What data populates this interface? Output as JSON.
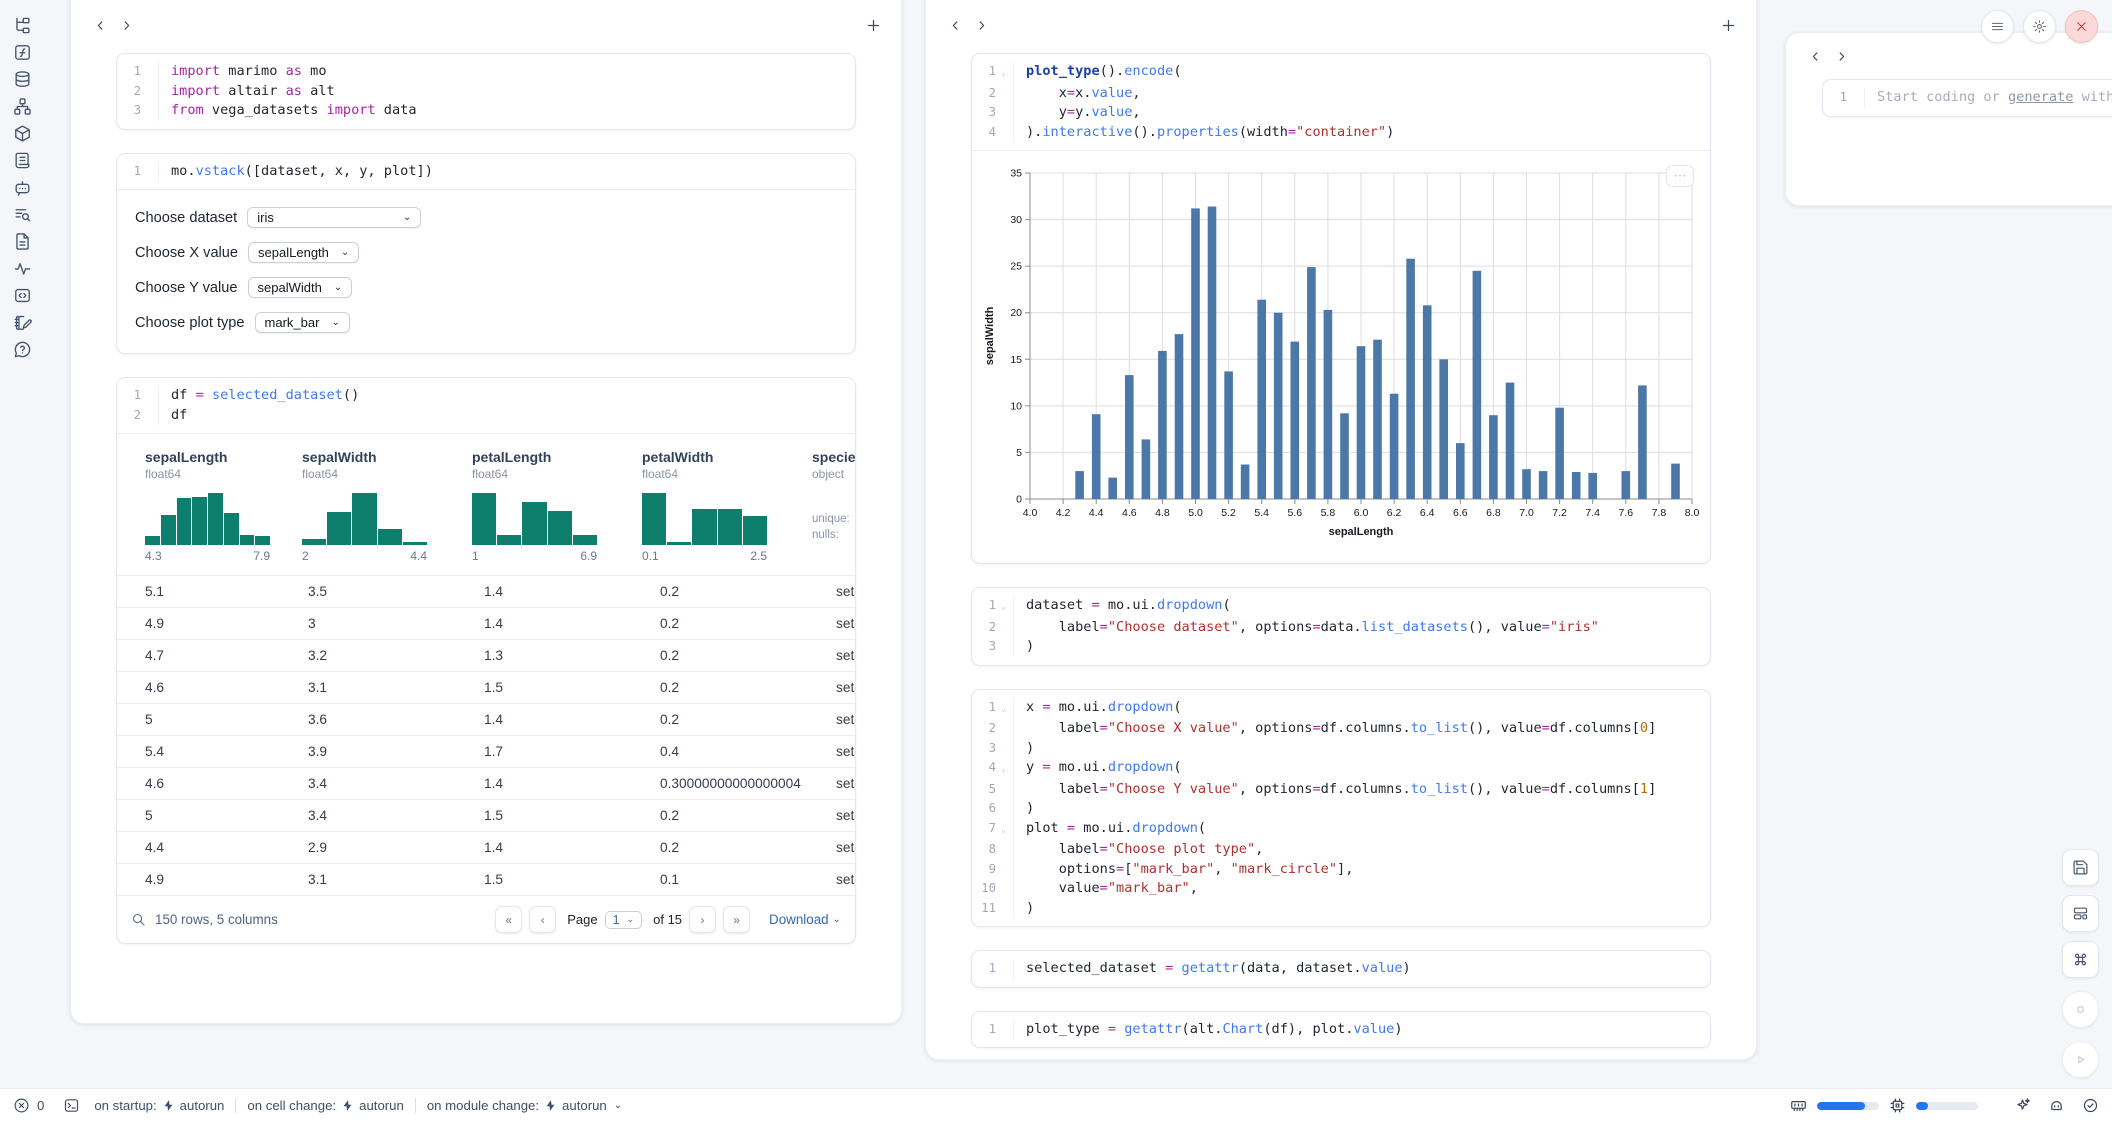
{
  "sidebar": {
    "icons": [
      "file-tree",
      "function-square",
      "database",
      "network",
      "package",
      "scroll-text",
      "chat-bot",
      "list-search",
      "document",
      "activity",
      "code-box",
      "notebook-pen",
      "help-circle"
    ]
  },
  "left_panel": {
    "cells": [
      {
        "lines": [
          {
            "n": 1,
            "t": [
              [
                "kw",
                "import"
              ],
              [
                "t",
                " marimo "
              ],
              [
                "kw",
                "as"
              ],
              [
                "t",
                " mo"
              ]
            ]
          },
          {
            "n": 2,
            "t": [
              [
                "kw",
                "import"
              ],
              [
                "t",
                " altair "
              ],
              [
                "kw",
                "as"
              ],
              [
                "t",
                " alt"
              ]
            ]
          },
          {
            "n": 3,
            "t": [
              [
                "kw",
                "from"
              ],
              [
                "t",
                " vega_datasets "
              ],
              [
                "kw",
                "import"
              ],
              [
                "t",
                " data"
              ]
            ]
          }
        ]
      },
      {
        "lines": [
          {
            "n": 1,
            "t": [
              [
                "t",
                "mo."
              ],
              [
                "fn",
                "vstack"
              ],
              [
                "t",
                "([dataset, x, y, plot])"
              ]
            ]
          }
        ]
      },
      {
        "lines": [
          {
            "n": 1,
            "t": [
              [
                "t",
                "df "
              ],
              [
                "op",
                "="
              ],
              [
                "t",
                " "
              ],
              [
                "fn",
                "selected_dataset"
              ],
              [
                "t",
                "()"
              ]
            ]
          },
          {
            "n": 2,
            "t": [
              [
                "t",
                "df"
              ]
            ]
          }
        ]
      }
    ],
    "controls": [
      {
        "label": "Choose dataset",
        "value": "iris"
      },
      {
        "label": "Choose X value",
        "value": "sepalLength"
      },
      {
        "label": "Choose Y value",
        "value": "sepalWidth"
      },
      {
        "label": "Choose plot type",
        "value": "mark_bar"
      }
    ],
    "table": {
      "columns": [
        {
          "name": "sepalLength",
          "dtype": "float64",
          "min": "4.3",
          "max": "7.9",
          "hist": [
            0.18,
            0.58,
            0.9,
            0.93,
            1.0,
            0.62,
            0.2,
            0.18
          ]
        },
        {
          "name": "sepalWidth",
          "dtype": "float64",
          "min": "2",
          "max": "4.4",
          "hist": [
            0.12,
            0.63,
            1.0,
            0.3,
            0.06
          ]
        },
        {
          "name": "petalLength",
          "dtype": "float64",
          "min": "1",
          "max": "6.9",
          "hist": [
            1.0,
            0.2,
            0.82,
            0.66,
            0.2
          ]
        },
        {
          "name": "petalWidth",
          "dtype": "float64",
          "min": "0.1",
          "max": "2.5",
          "hist": [
            1.0,
            0.05,
            0.7,
            0.7,
            0.56
          ]
        },
        {
          "name": "species",
          "dtype": "object",
          "stats": [
            "unique:",
            "nulls:"
          ]
        }
      ],
      "rows": [
        [
          "5.1",
          "3.5",
          "1.4",
          "0.2",
          "setosa"
        ],
        [
          "4.9",
          "3",
          "1.4",
          "0.2",
          "setosa"
        ],
        [
          "4.7",
          "3.2",
          "1.3",
          "0.2",
          "setosa"
        ],
        [
          "4.6",
          "3.1",
          "1.5",
          "0.2",
          "setosa"
        ],
        [
          "5",
          "3.6",
          "1.4",
          "0.2",
          "setosa"
        ],
        [
          "5.4",
          "3.9",
          "1.7",
          "0.4",
          "setosa"
        ],
        [
          "4.6",
          "3.4",
          "1.4",
          "0.30000000000000004",
          "setosa"
        ],
        [
          "5",
          "3.4",
          "1.5",
          "0.2",
          "setosa"
        ],
        [
          "4.4",
          "2.9",
          "1.4",
          "0.2",
          "setosa"
        ],
        [
          "4.9",
          "3.1",
          "1.5",
          "0.1",
          "setosa"
        ]
      ],
      "footer": {
        "summary": "150 rows, 5 columns",
        "page_label": "Page",
        "page_value": "1",
        "of_text": "of 15",
        "download": "Download"
      }
    }
  },
  "middle_panel": {
    "cells": [
      {
        "lines": [
          {
            "n": 1,
            "f": true,
            "t": [
              [
                "def",
                "plot_type"
              ],
              [
                "t",
                "()."
              ],
              [
                "fn",
                "encode"
              ],
              [
                "t",
                "("
              ]
            ]
          },
          {
            "n": 2,
            "t": [
              [
                "t",
                "    x"
              ],
              [
                "op",
                "="
              ],
              [
                "t",
                "x."
              ],
              [
                "fn",
                "value"
              ],
              [
                "t",
                ","
              ]
            ]
          },
          {
            "n": 3,
            "t": [
              [
                "t",
                "    y"
              ],
              [
                "op",
                "="
              ],
              [
                "t",
                "y."
              ],
              [
                "fn",
                "value"
              ],
              [
                "t",
                ","
              ]
            ]
          },
          {
            "n": 4,
            "t": [
              [
                "t",
                ")."
              ],
              [
                "fn",
                "interactive"
              ],
              [
                "t",
                "()."
              ],
              [
                "fn",
                "properties"
              ],
              [
                "t",
                "(width"
              ],
              [
                "op",
                "="
              ],
              [
                "str",
                "\"container\""
              ],
              [
                "t",
                ")"
              ]
            ]
          }
        ]
      },
      {
        "lines": [
          {
            "n": 1,
            "f": true,
            "t": [
              [
                "t",
                "dataset "
              ],
              [
                "op",
                "="
              ],
              [
                "t",
                " mo.ui."
              ],
              [
                "fn",
                "dropdown"
              ],
              [
                "t",
                "("
              ]
            ]
          },
          {
            "n": 2,
            "t": [
              [
                "t",
                "    label"
              ],
              [
                "op",
                "="
              ],
              [
                "str",
                "\"Choose dataset\""
              ],
              [
                "t",
                ", options"
              ],
              [
                "op",
                "="
              ],
              [
                "t",
                "data."
              ],
              [
                "fn",
                "list_datasets"
              ],
              [
                "t",
                "(), value"
              ],
              [
                "op",
                "="
              ],
              [
                "str",
                "\"iris\""
              ]
            ]
          },
          {
            "n": 3,
            "t": [
              [
                "t",
                ")"
              ]
            ]
          }
        ]
      },
      {
        "lines": [
          {
            "n": 1,
            "f": true,
            "t": [
              [
                "t",
                "x "
              ],
              [
                "op",
                "="
              ],
              [
                "t",
                " mo.ui."
              ],
              [
                "fn",
                "dropdown"
              ],
              [
                "t",
                "("
              ]
            ]
          },
          {
            "n": 2,
            "t": [
              [
                "t",
                "    label"
              ],
              [
                "op",
                "="
              ],
              [
                "str",
                "\"Choose X value\""
              ],
              [
                "t",
                ", options"
              ],
              [
                "op",
                "="
              ],
              [
                "t",
                "df.columns."
              ],
              [
                "fn",
                "to_list"
              ],
              [
                "t",
                "(), value"
              ],
              [
                "op",
                "="
              ],
              [
                "t",
                "df.columns["
              ],
              [
                "num",
                "0"
              ],
              [
                "t",
                "]"
              ]
            ]
          },
          {
            "n": 3,
            "t": [
              [
                "t",
                ")"
              ]
            ]
          },
          {
            "n": 4,
            "f": true,
            "t": [
              [
                "t",
                "y "
              ],
              [
                "op",
                "="
              ],
              [
                "t",
                " mo.ui."
              ],
              [
                "fn",
                "dropdown"
              ],
              [
                "t",
                "("
              ]
            ]
          },
          {
            "n": 5,
            "t": [
              [
                "t",
                "    label"
              ],
              [
                "op",
                "="
              ],
              [
                "str",
                "\"Choose Y value\""
              ],
              [
                "t",
                ", options"
              ],
              [
                "op",
                "="
              ],
              [
                "t",
                "df.columns."
              ],
              [
                "fn",
                "to_list"
              ],
              [
                "t",
                "(), value"
              ],
              [
                "op",
                "="
              ],
              [
                "t",
                "df.columns["
              ],
              [
                "num",
                "1"
              ],
              [
                "t",
                "]"
              ]
            ]
          },
          {
            "n": 6,
            "t": [
              [
                "t",
                ")"
              ]
            ]
          },
          {
            "n": 7,
            "f": true,
            "t": [
              [
                "t",
                "plot "
              ],
              [
                "op",
                "="
              ],
              [
                "t",
                " mo.ui."
              ],
              [
                "fn",
                "dropdown"
              ],
              [
                "t",
                "("
              ]
            ]
          },
          {
            "n": 8,
            "t": [
              [
                "t",
                "    label"
              ],
              [
                "op",
                "="
              ],
              [
                "str",
                "\"Choose plot type\""
              ],
              [
                "t",
                ","
              ]
            ]
          },
          {
            "n": 9,
            "t": [
              [
                "t",
                "    options"
              ],
              [
                "op",
                "="
              ],
              [
                "t",
                "["
              ],
              [
                "str",
                "\"mark_bar\""
              ],
              [
                "t",
                ", "
              ],
              [
                "str",
                "\"mark_circle\""
              ],
              [
                "t",
                "],"
              ]
            ]
          },
          {
            "n": 10,
            "t": [
              [
                "t",
                "    value"
              ],
              [
                "op",
                "="
              ],
              [
                "str",
                "\"mark_bar\""
              ],
              [
                "t",
                ","
              ]
            ]
          },
          {
            "n": 11,
            "t": [
              [
                "t",
                ")"
              ]
            ]
          }
        ]
      },
      {
        "lines": [
          {
            "n": 1,
            "t": [
              [
                "t",
                "selected_dataset "
              ],
              [
                "op",
                "="
              ],
              [
                "t",
                " "
              ],
              [
                "fn",
                "getattr"
              ],
              [
                "t",
                "(data, dataset."
              ],
              [
                "fn",
                "value"
              ],
              [
                "t",
                ")"
              ]
            ]
          }
        ]
      },
      {
        "lines": [
          {
            "n": 1,
            "t": [
              [
                "t",
                "plot_type "
              ],
              [
                "op",
                "="
              ],
              [
                "t",
                " "
              ],
              [
                "fn",
                "getattr"
              ],
              [
                "t",
                "(alt."
              ],
              [
                "fn",
                "Chart"
              ],
              [
                "t",
                "(df), plot."
              ],
              [
                "fn",
                "value"
              ],
              [
                "t",
                ")"
              ]
            ]
          }
        ]
      }
    ]
  },
  "right_panel": {
    "line_no": "1",
    "placeholder": {
      "pre": "Start coding or ",
      "link": "generate",
      "post": " with"
    }
  },
  "chart_data": {
    "type": "bar",
    "title": "",
    "xlabel": "sepalLength",
    "ylabel": "sepalWidth",
    "xlim": [
      4.0,
      8.0
    ],
    "ylim": [
      0,
      35
    ],
    "xticks": [
      4.0,
      4.2,
      4.4,
      4.6,
      4.8,
      5.0,
      5.2,
      5.4,
      5.6,
      5.8,
      6.0,
      6.2,
      6.4,
      6.6,
      6.8,
      7.0,
      7.2,
      7.4,
      7.6,
      7.8,
      8.0
    ],
    "yticks": [
      0,
      5,
      10,
      15,
      20,
      25,
      30,
      35
    ],
    "grid": true,
    "bar_color": "#4c78a8",
    "x": [
      4.3,
      4.4,
      4.5,
      4.6,
      4.7,
      4.8,
      4.9,
      5.0,
      5.1,
      5.2,
      5.3,
      5.4,
      5.5,
      5.6,
      5.7,
      5.8,
      5.9,
      6.0,
      6.1,
      6.2,
      6.3,
      6.4,
      6.5,
      6.6,
      6.7,
      6.8,
      6.9,
      7.0,
      7.1,
      7.2,
      7.3,
      7.4,
      7.6,
      7.7,
      7.9
    ],
    "values": [
      3.0,
      9.1,
      2.3,
      13.3,
      6.4,
      15.9,
      17.7,
      31.2,
      31.4,
      13.7,
      3.7,
      21.4,
      20.0,
      16.9,
      24.9,
      20.3,
      9.2,
      16.4,
      17.1,
      11.3,
      25.8,
      20.8,
      15.0,
      6.0,
      24.5,
      9.0,
      12.5,
      3.2,
      3.0,
      9.8,
      2.9,
      2.8,
      3.0,
      12.2,
      3.8
    ]
  },
  "status_bar": {
    "error_count": "0",
    "modes": [
      {
        "label": "on startup:",
        "value": "autorun"
      },
      {
        "label": "on cell change:",
        "value": "autorun"
      },
      {
        "label": "on module change:",
        "value": "autorun"
      }
    ],
    "ram_pct": 78,
    "cpu_pct": 20
  }
}
